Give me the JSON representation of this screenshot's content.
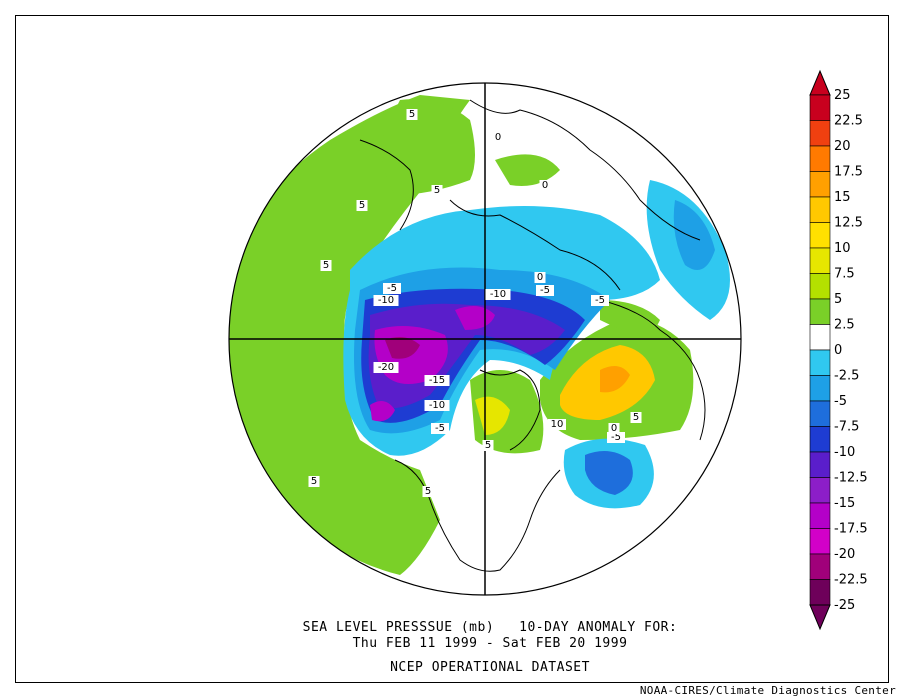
{
  "title": {
    "line1": "SEA LEVEL PRESSSUE (mb)   10-DAY ANOMALY FOR:",
    "line2": "Thu FEB 11 1999 - Sat FEB 20 1999",
    "line3": "NCEP OPERATIONAL DATASET"
  },
  "credit": "NOAA-CIRES/Climate Diagnostics Center",
  "colorbar": {
    "levels": [
      "25",
      "22.5",
      "20",
      "17.5",
      "15",
      "12.5",
      "10",
      "7.5",
      "5",
      "2.5",
      "0",
      "-2.5",
      "-5",
      "-7.5",
      "-10",
      "-12.5",
      "-15",
      "-17.5",
      "-20",
      "-22.5",
      "-25"
    ],
    "colors": [
      "#c8001e",
      "#f04010",
      "#ff7a00",
      "#ffa000",
      "#ffc800",
      "#ffe000",
      "#e6e600",
      "#b4e000",
      "#7ad028",
      "#ffffff",
      "#30c8f0",
      "#1ea0e6",
      "#1e6edc",
      "#1e3cd2",
      "#5a1ecb",
      "#8c1ec8",
      "#b400c8",
      "#d200c8",
      "#a0007a",
      "#6e005a"
    ]
  },
  "contour_labels": [
    {
      "text": "5"
    },
    {
      "text": "5"
    },
    {
      "text": "5"
    },
    {
      "text": "5"
    },
    {
      "text": "5"
    },
    {
      "text": "-5"
    },
    {
      "text": "-10"
    },
    {
      "text": "-20"
    },
    {
      "text": "-15"
    },
    {
      "text": "-10"
    },
    {
      "text": "-5"
    },
    {
      "text": "-10"
    },
    {
      "text": "-5"
    },
    {
      "text": "-5"
    },
    {
      "text": "0"
    },
    {
      "text": "0"
    },
    {
      "text": "0"
    },
    {
      "text": "10"
    },
    {
      "text": "5"
    },
    {
      "text": "-5"
    },
    {
      "text": "0"
    },
    {
      "text": "5"
    },
    {
      "text": "5"
    }
  ]
}
